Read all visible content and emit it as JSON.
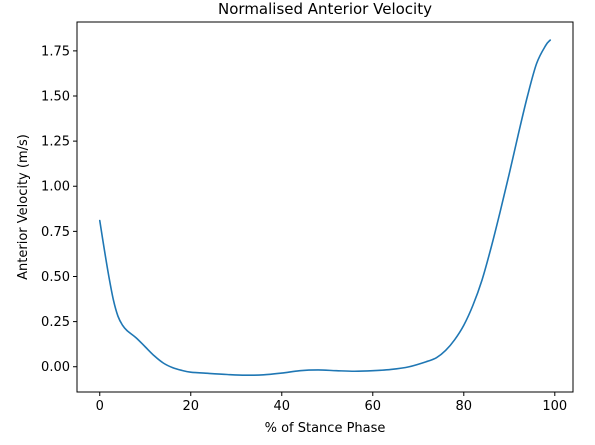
{
  "chart_data": {
    "type": "line",
    "title": "Normalised Anterior Velocity",
    "xlabel": "% of Stance Phase",
    "ylabel": "Anterior Velocity (m/s)",
    "xlim": [
      -5,
      104
    ],
    "ylim": [
      -0.14,
      1.91
    ],
    "xticks": [
      0,
      20,
      40,
      60,
      80,
      100
    ],
    "xtick_labels": [
      "0",
      "20",
      "40",
      "60",
      "80",
      "100"
    ],
    "yticks": [
      0.0,
      0.25,
      0.5,
      0.75,
      1.0,
      1.25,
      1.5,
      1.75
    ],
    "ytick_labels": [
      "0.00",
      "0.25",
      "0.50",
      "0.75",
      "1.00",
      "1.25",
      "1.50",
      "1.75"
    ],
    "grid": false,
    "series": [
      {
        "color": "#1f77b4",
        "x": [
          0,
          1,
          2,
          3,
          4,
          5,
          6,
          8,
          10,
          12,
          14,
          16,
          18,
          20,
          24,
          28,
          32,
          36,
          40,
          44,
          48,
          52,
          56,
          60,
          64,
          68,
          72,
          74,
          76,
          78,
          80,
          82,
          84,
          86,
          88,
          90,
          92,
          94,
          96,
          98,
          99
        ],
        "y": [
          0.81,
          0.65,
          0.5,
          0.37,
          0.28,
          0.23,
          0.2,
          0.16,
          0.11,
          0.06,
          0.02,
          -0.005,
          -0.02,
          -0.03,
          -0.037,
          -0.043,
          -0.047,
          -0.045,
          -0.035,
          -0.022,
          -0.018,
          -0.022,
          -0.025,
          -0.022,
          -0.015,
          0.0,
          0.03,
          0.05,
          0.09,
          0.15,
          0.23,
          0.34,
          0.48,
          0.66,
          0.86,
          1.07,
          1.29,
          1.5,
          1.68,
          1.78,
          1.81
        ]
      }
    ]
  }
}
